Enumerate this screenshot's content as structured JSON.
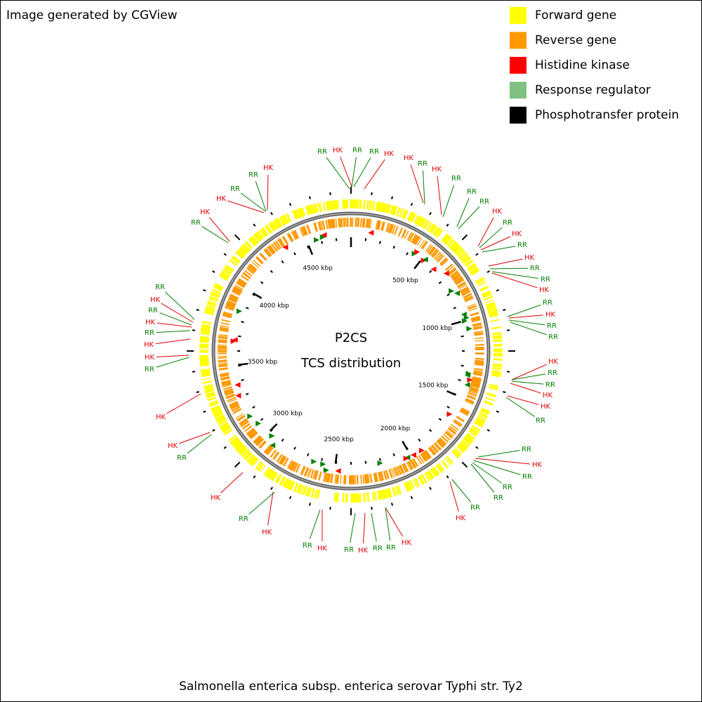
{
  "header": {
    "credit": "Image generated by CGView"
  },
  "legend": [
    {
      "label": "Forward gene",
      "color": "#ffff00"
    },
    {
      "label": "Reverse gene",
      "color": "#ff9900"
    },
    {
      "label": "Histidine kinase",
      "color": "#ff0000"
    },
    {
      "label": "Response regulator",
      "color": "#80c080"
    },
    {
      "label": "Phosphotransfer protein",
      "color": "#000000"
    }
  ],
  "map": {
    "title": "P2CS",
    "subtitle": "TCS distribution",
    "scale_labels": [
      "500 kbp",
      "1000 kbp",
      "1500 kbp",
      "2000 kbp",
      "2500 kbp",
      "3000 kbp",
      "3500 kbp",
      "4000 kbp",
      "4500 kbp"
    ],
    "features": [
      {
        "label": "RR",
        "color": "#008000"
      },
      {
        "label": "HK",
        "color": "#e00000"
      },
      {
        "label": "RR",
        "color": "#008000"
      },
      {
        "label": "RR",
        "color": "#008000"
      },
      {
        "label": "HK",
        "color": "#e00000"
      },
      {
        "label": "HK",
        "color": "#e00000"
      },
      {
        "label": "RR",
        "color": "#008000"
      },
      {
        "label": "HK",
        "color": "#e00000"
      },
      {
        "label": "RR",
        "color": "#008000"
      },
      {
        "label": "RR",
        "color": "#008000"
      },
      {
        "label": "RR",
        "color": "#008000"
      },
      {
        "label": "HK",
        "color": "#e00000"
      },
      {
        "label": "RR",
        "color": "#008000"
      },
      {
        "label": "HK",
        "color": "#e00000"
      },
      {
        "label": "RR",
        "color": "#008000"
      },
      {
        "label": "HK",
        "color": "#e00000"
      },
      {
        "label": "RR",
        "color": "#008000"
      },
      {
        "label": "RR",
        "color": "#008000"
      },
      {
        "label": "HK",
        "color": "#e00000"
      },
      {
        "label": "RR",
        "color": "#008000"
      },
      {
        "label": "HK",
        "color": "#e00000"
      },
      {
        "label": "RR",
        "color": "#008000"
      },
      {
        "label": "RR",
        "color": "#008000"
      },
      {
        "label": "HK",
        "color": "#e00000"
      },
      {
        "label": "RR",
        "color": "#008000"
      },
      {
        "label": "RR",
        "color": "#008000"
      },
      {
        "label": "HK",
        "color": "#e00000"
      },
      {
        "label": "HK",
        "color": "#e00000"
      },
      {
        "label": "RR",
        "color": "#008000"
      },
      {
        "label": "RR",
        "color": "#008000"
      },
      {
        "label": "HK",
        "color": "#e00000"
      },
      {
        "label": "RR",
        "color": "#008000"
      },
      {
        "label": "RR",
        "color": "#008000"
      },
      {
        "label": "RR",
        "color": "#008000"
      },
      {
        "label": "RR",
        "color": "#008000"
      },
      {
        "label": "HK",
        "color": "#e00000"
      },
      {
        "label": "HK",
        "color": "#e00000"
      },
      {
        "label": "RR",
        "color": "#008000"
      },
      {
        "label": "RR",
        "color": "#008000"
      },
      {
        "label": "HK",
        "color": "#e00000"
      },
      {
        "label": "RR",
        "color": "#008000"
      },
      {
        "label": "HK",
        "color": "#e00000"
      },
      {
        "label": "RR",
        "color": "#008000"
      },
      {
        "label": "HK",
        "color": "#e00000"
      },
      {
        "label": "RR",
        "color": "#008000"
      },
      {
        "label": "HK",
        "color": "#e00000"
      },
      {
        "label": "RR",
        "color": "#008000"
      },
      {
        "label": "HK",
        "color": "#e00000"
      },
      {
        "label": "HK",
        "color": "#e00000"
      },
      {
        "label": "RR",
        "color": "#008000"
      },
      {
        "label": "HK",
        "color": "#e00000"
      },
      {
        "label": "HK",
        "color": "#e00000"
      },
      {
        "label": "RR",
        "color": "#008000"
      },
      {
        "label": "HK",
        "color": "#e00000"
      },
      {
        "label": "RR",
        "color": "#008000"
      },
      {
        "label": "HK",
        "color": "#e00000"
      },
      {
        "label": "RR",
        "color": "#008000"
      },
      {
        "label": "RR",
        "color": "#008000"
      },
      {
        "label": "HK",
        "color": "#e00000"
      },
      {
        "label": "HK",
        "color": "#e00000"
      },
      {
        "label": "RR",
        "color": "#008000"
      },
      {
        "label": "RR",
        "color": "#008000"
      },
      {
        "label": "HK",
        "color": "#e00000"
      }
    ]
  },
  "caption": "Salmonella enterica subsp. enterica serovar Typhi str. Ty2"
}
